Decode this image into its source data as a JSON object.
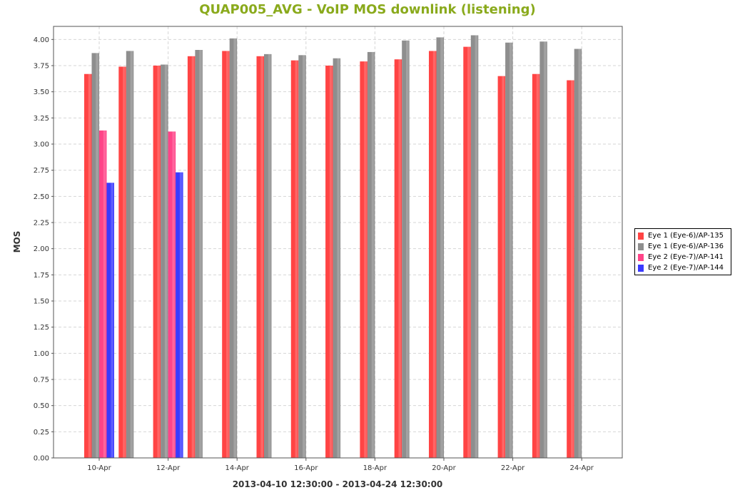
{
  "chart_data": {
    "type": "bar",
    "title": "QUAP005_AVG - VoIP MOS downlink (listening)",
    "xlabel": "2013-04-10 12:30:00 - 2013-04-24 12:30:00",
    "ylabel": "MOS",
    "ylim": [
      0,
      4.125
    ],
    "yticks": [
      "0.00",
      "0.25",
      "0.50",
      "0.75",
      "1.00",
      "1.25",
      "1.50",
      "1.75",
      "2.00",
      "2.25",
      "2.50",
      "2.75",
      "3.00",
      "3.25",
      "3.50",
      "3.75",
      "4.00"
    ],
    "grid": true,
    "legend_position": "right",
    "categories": [
      "10-Apr",
      "11-Apr",
      "12-Apr",
      "13-Apr",
      "14-Apr",
      "15-Apr",
      "16-Apr",
      "17-Apr",
      "18-Apr",
      "19-Apr",
      "20-Apr",
      "21-Apr",
      "22-Apr",
      "23-Apr",
      "24-Apr"
    ],
    "tick_labels": [
      "10-Apr",
      "12-Apr",
      "14-Apr",
      "16-Apr",
      "18-Apr",
      "20-Apr",
      "22-Apr",
      "24-Apr"
    ],
    "series": [
      {
        "name": "Eye 1 (Eye-6)/AP-135",
        "color": "#ff4444",
        "values": [
          3.67,
          3.74,
          3.75,
          3.84,
          3.89,
          3.84,
          3.8,
          3.75,
          3.79,
          3.81,
          3.89,
          3.93,
          3.65,
          3.67,
          3.61
        ]
      },
      {
        "name": "Eye 1 (Eye-6)/AP-136",
        "color": "#8e8e8e",
        "values": [
          3.87,
          3.89,
          3.76,
          3.9,
          4.01,
          3.86,
          3.85,
          3.82,
          3.88,
          3.99,
          4.02,
          4.04,
          3.97,
          3.98,
          3.91
        ]
      },
      {
        "name": "Eye 2 (Eye-7)/AP-141",
        "color": "#ff4488",
        "values": [
          3.13,
          null,
          3.12,
          null,
          null,
          null,
          null,
          null,
          null,
          null,
          null,
          null,
          null,
          null,
          null
        ]
      },
      {
        "name": "Eye 2 (Eye-7)/AP-144",
        "color": "#3a3aff",
        "values": [
          2.63,
          null,
          2.73,
          null,
          null,
          null,
          null,
          null,
          null,
          null,
          null,
          null,
          null,
          null,
          null
        ]
      }
    ]
  }
}
